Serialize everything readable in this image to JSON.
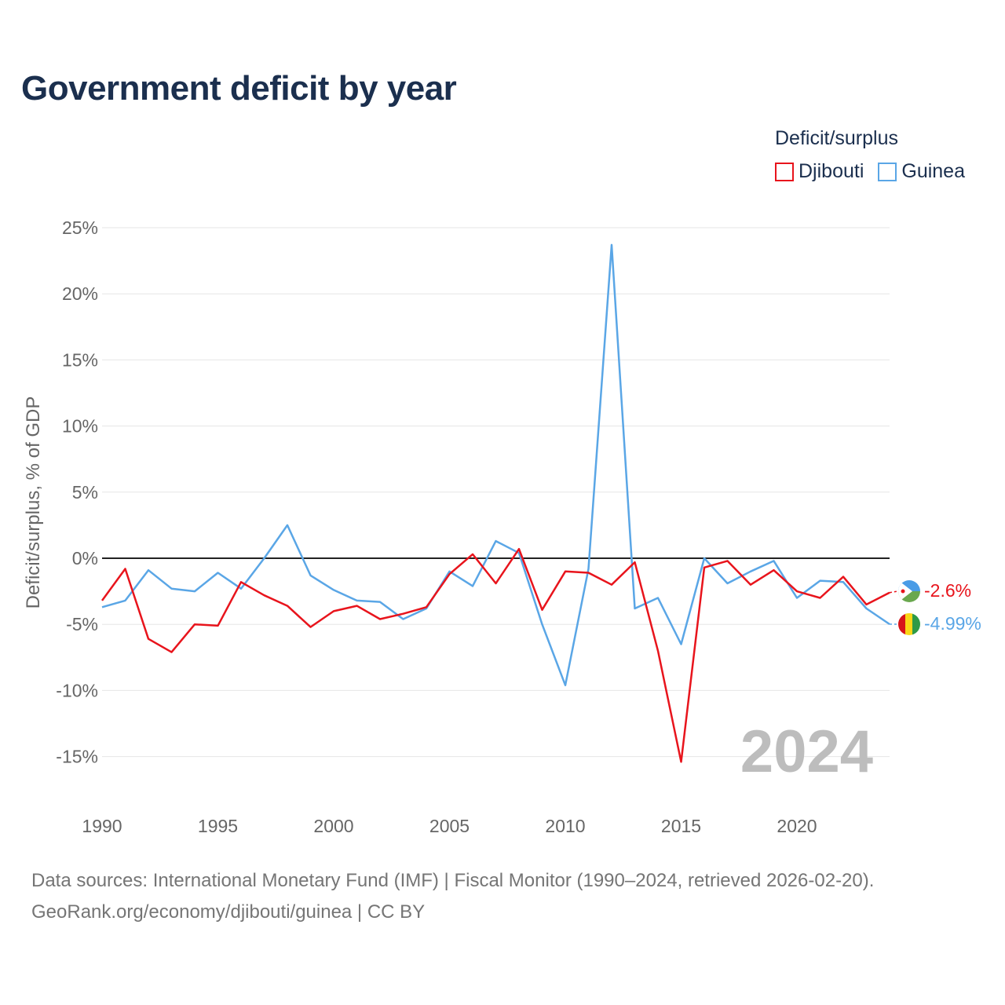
{
  "title": "Government deficit by year",
  "legend": {
    "title": "Deficit/surplus",
    "items": [
      {
        "label": "Djibouti",
        "color": "#e8141c"
      },
      {
        "label": "Guinea",
        "color": "#5aa6e6"
      }
    ]
  },
  "footer": {
    "sources": "Data sources: International Monetary Fund (IMF) | Fiscal Monitor (1990–2024, retrieved 2026-02-20).",
    "link": "GeoRank.org/economy/djibouti/guinea | CC BY"
  },
  "chart_data": {
    "type": "line",
    "title": "Government deficit by year",
    "xlabel": "",
    "ylabel": "Deficit/surplus, % of GDP",
    "xlim": [
      1990,
      2024
    ],
    "ylim": [
      -18,
      25
    ],
    "x_ticks": [
      1990,
      1995,
      2000,
      2005,
      2010,
      2015,
      2020
    ],
    "y_ticks": [
      {
        "value": 25,
        "label": "25%"
      },
      {
        "value": 20,
        "label": "20%"
      },
      {
        "value": 15,
        "label": "15%"
      },
      {
        "value": 10,
        "label": "10%"
      },
      {
        "value": 5,
        "label": "5%"
      },
      {
        "value": 0,
        "label": "0%"
      },
      {
        "value": -5,
        "label": "-5%"
      },
      {
        "value": -10,
        "label": "-10%"
      },
      {
        "value": -15,
        "label": "-15%"
      }
    ],
    "year_watermark": "2024",
    "x": [
      1990,
      1991,
      1992,
      1993,
      1994,
      1995,
      1996,
      1997,
      1998,
      1999,
      2000,
      2001,
      2002,
      2003,
      2004,
      2005,
      2006,
      2007,
      2008,
      2009,
      2010,
      2011,
      2012,
      2013,
      2014,
      2015,
      2016,
      2017,
      2018,
      2019,
      2020,
      2021,
      2022,
      2023,
      2024
    ],
    "series": [
      {
        "name": "Djibouti",
        "color": "#e8141c",
        "end_label": "-2.6%",
        "values": [
          -3.2,
          -0.8,
          -6.1,
          -7.1,
          -5.0,
          -5.1,
          -1.8,
          -2.8,
          -3.6,
          -5.2,
          -4.0,
          -3.6,
          -4.6,
          -4.2,
          -3.7,
          -1.2,
          0.3,
          -1.9,
          0.7,
          -3.9,
          -1.0,
          -1.1,
          -2.0,
          -0.3,
          -7.0,
          -15.4,
          -0.7,
          -0.2,
          -2.0,
          -0.9,
          -2.5,
          -3.0,
          -1.4,
          -3.5,
          -2.6
        ]
      },
      {
        "name": "Guinea",
        "color": "#5aa6e6",
        "end_label": "-4.99%",
        "values": [
          -3.7,
          -3.2,
          -0.9,
          -2.3,
          -2.5,
          -1.1,
          -2.3,
          0.0,
          2.5,
          -1.3,
          -2.4,
          -3.2,
          -3.3,
          -4.6,
          -3.8,
          -1.0,
          -2.1,
          1.3,
          0.4,
          -5.0,
          -9.6,
          -0.8,
          23.7,
          -3.8,
          -3.0,
          -6.5,
          0.0,
          -1.9,
          -1.0,
          -0.2,
          -3.0,
          -1.7,
          -1.8,
          -3.8,
          -4.99
        ]
      }
    ]
  }
}
